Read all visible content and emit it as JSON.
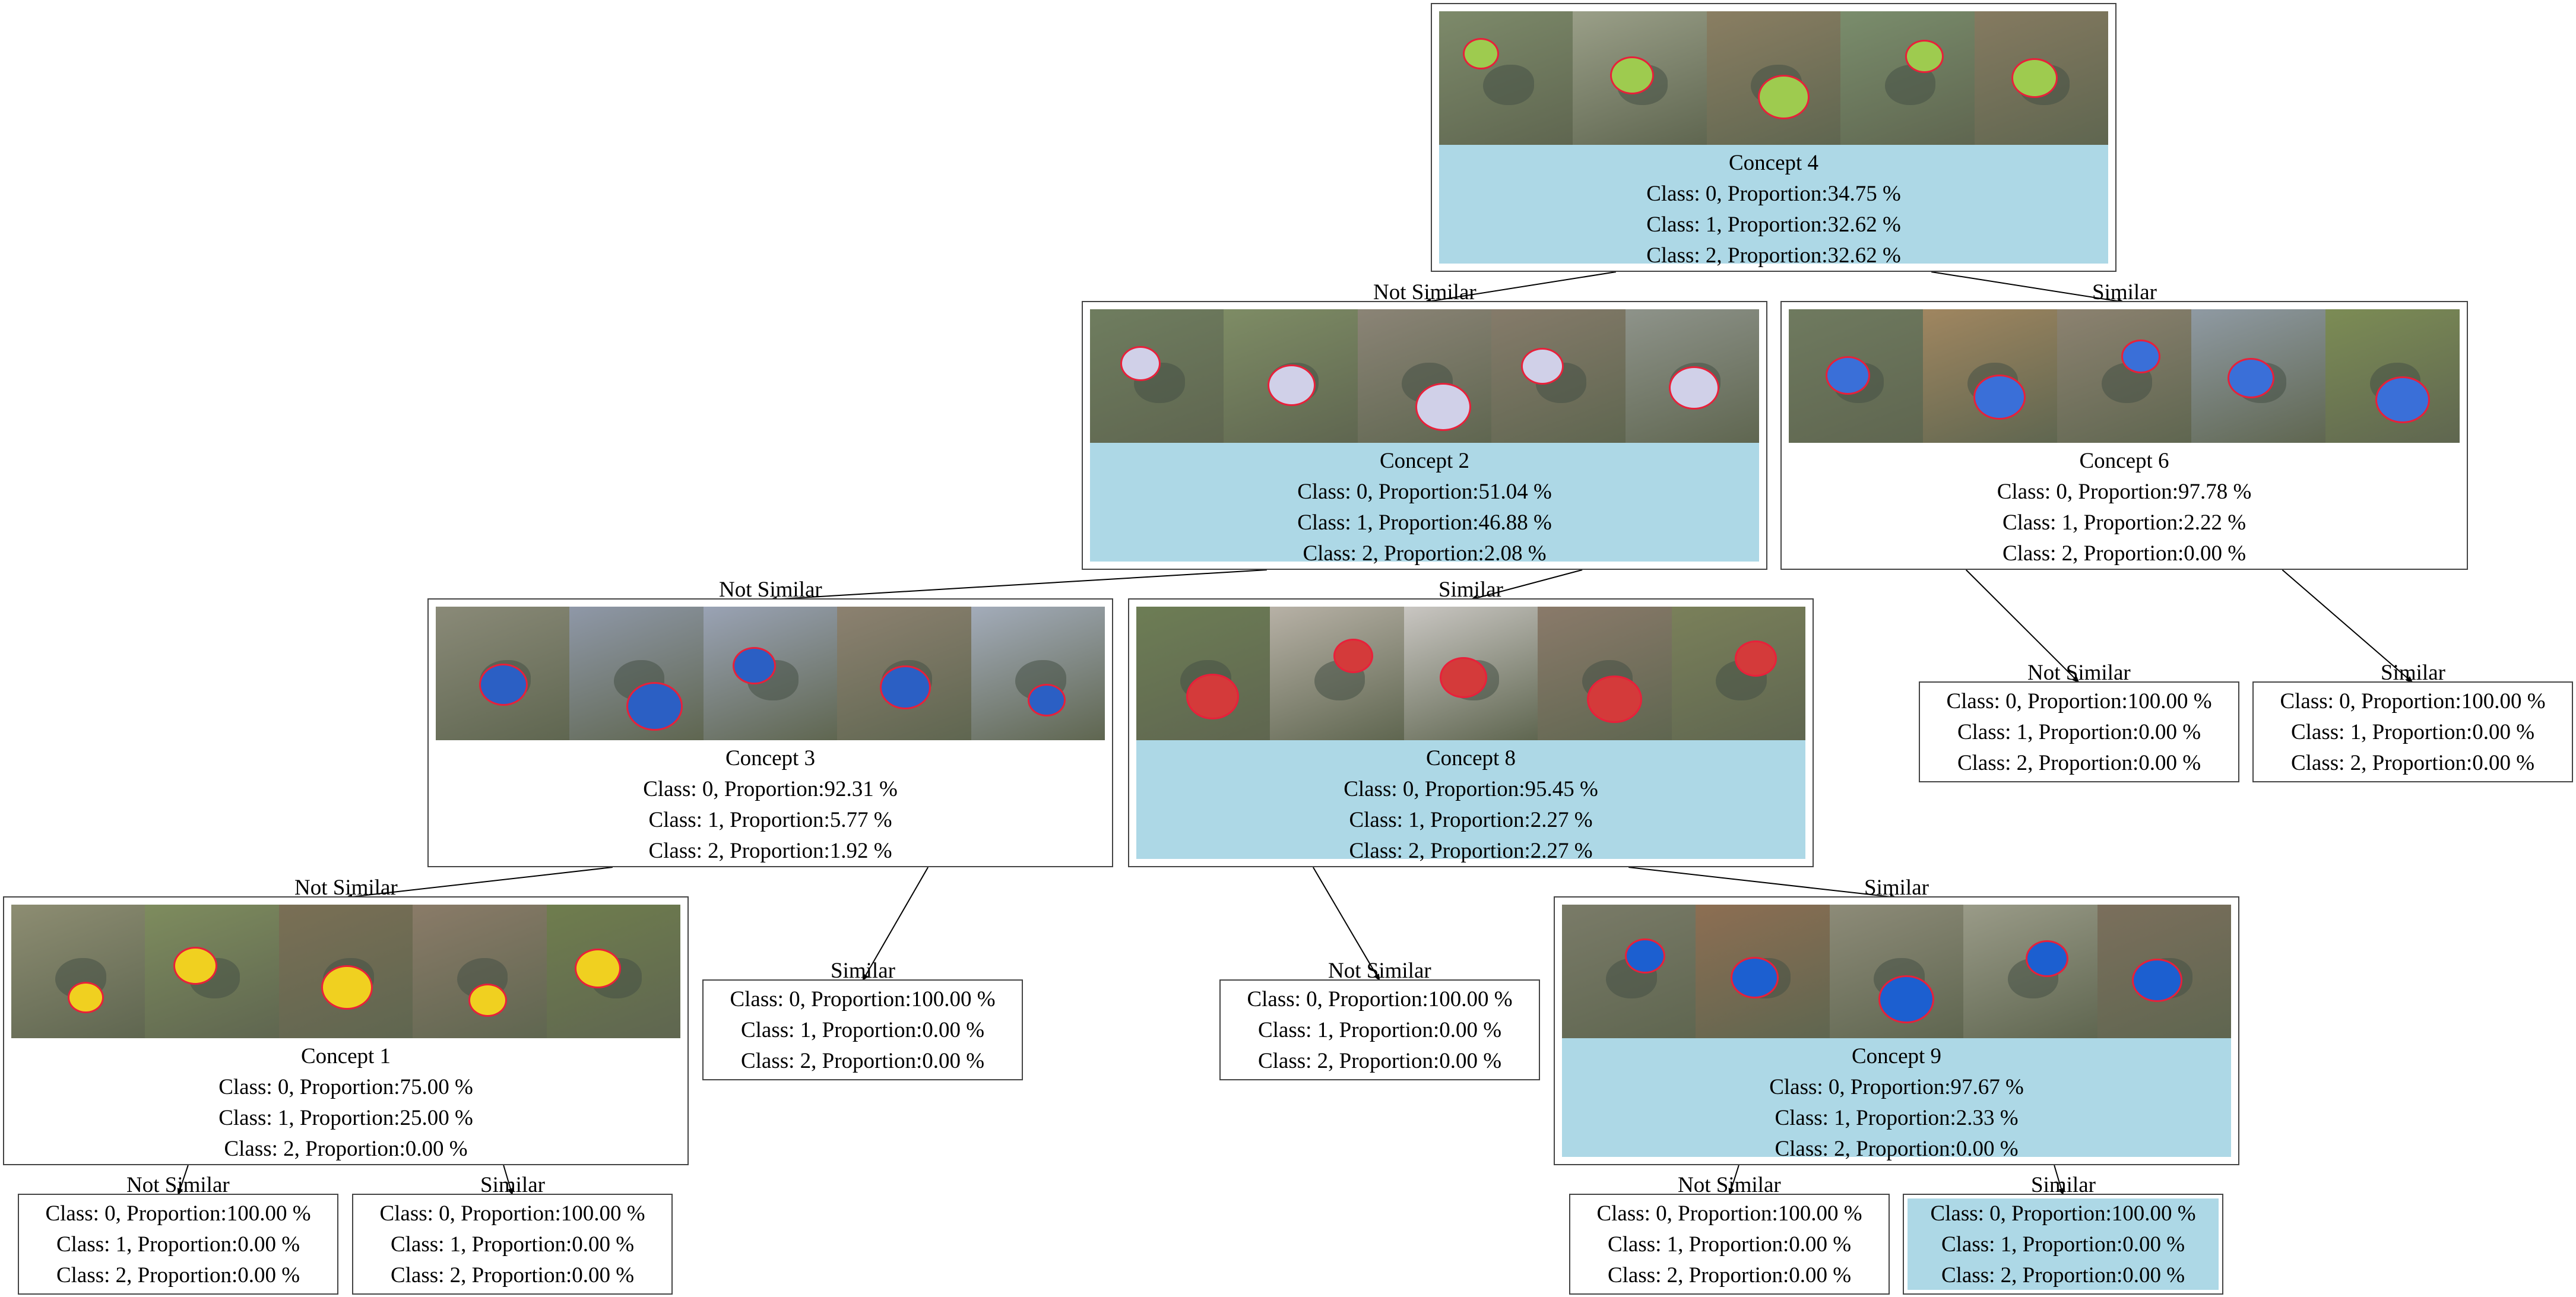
{
  "tree": {
    "edge_labels": {
      "no": "Not Similar",
      "yes": "Similar"
    },
    "nodes": [
      {
        "id": "c4",
        "title": "Concept 4",
        "highlight": true,
        "lines": [
          "Class: 0, Proportion:34.75 %",
          "Class: 1, Proportion:32.62 %",
          "Class: 2, Proportion:32.62 %"
        ]
      },
      {
        "id": "c2",
        "title": "Concept 2",
        "highlight": true,
        "lines": [
          "Class: 0, Proportion:51.04 %",
          "Class: 1, Proportion:46.88 %",
          "Class: 2, Proportion:2.08 %"
        ]
      },
      {
        "id": "c6",
        "title": "Concept 6",
        "highlight": false,
        "lines": [
          "Class: 0, Proportion:97.78 %",
          "Class: 1, Proportion:2.22 %",
          "Class: 2, Proportion:0.00 %"
        ]
      },
      {
        "id": "c3",
        "title": "Concept 3",
        "highlight": false,
        "lines": [
          "Class: 0, Proportion:92.31 %",
          "Class: 1, Proportion:5.77 %",
          "Class: 2, Proportion:1.92 %"
        ]
      },
      {
        "id": "c8",
        "title": "Concept 8",
        "highlight": true,
        "lines": [
          "Class: 0, Proportion:95.45 %",
          "Class: 1, Proportion:2.27 %",
          "Class: 2, Proportion:2.27 %"
        ]
      },
      {
        "id": "c1",
        "title": "Concept 1",
        "highlight": false,
        "lines": [
          "Class: 0, Proportion:75.00 %",
          "Class: 1, Proportion:25.00 %",
          "Class: 2, Proportion:0.00 %"
        ]
      },
      {
        "id": "c9",
        "title": "Concept 9",
        "highlight": true,
        "lines": [
          "Class: 0, Proportion:97.67 %",
          "Class: 1, Proportion:2.33 %",
          "Class: 2, Proportion:0.00 %"
        ]
      }
    ],
    "leaves": [
      {
        "id": "l6n",
        "highlight": false,
        "lines": [
          "Class: 0, Proportion:100.00 %",
          "Class: 1, Proportion:0.00 %",
          "Class: 2, Proportion:0.00 %"
        ]
      },
      {
        "id": "l6y",
        "highlight": false,
        "lines": [
          "Class: 0, Proportion:100.00 %",
          "Class: 1, Proportion:0.00 %",
          "Class: 2, Proportion:0.00 %"
        ]
      },
      {
        "id": "l3y",
        "highlight": false,
        "lines": [
          "Class: 0, Proportion:100.00 %",
          "Class: 1, Proportion:0.00 %",
          "Class: 2, Proportion:0.00 %"
        ]
      },
      {
        "id": "l8n",
        "highlight": false,
        "lines": [
          "Class: 0, Proportion:100.00 %",
          "Class: 1, Proportion:0.00 %",
          "Class: 2, Proportion:0.00 %"
        ]
      },
      {
        "id": "l1n",
        "highlight": false,
        "lines": [
          "Class: 0, Proportion:100.00 %",
          "Class: 1, Proportion:0.00 %",
          "Class: 2, Proportion:0.00 %"
        ]
      },
      {
        "id": "l1y",
        "highlight": false,
        "lines": [
          "Class: 0, Proportion:100.00 %",
          "Class: 1, Proportion:0.00 %",
          "Class: 2, Proportion:0.00 %"
        ]
      },
      {
        "id": "l9n",
        "highlight": false,
        "lines": [
          "Class: 0, Proportion:100.00 %",
          "Class: 1, Proportion:0.00 %",
          "Class: 2, Proportion:0.00 %"
        ]
      },
      {
        "id": "l9y",
        "highlight": true,
        "lines": [
          "Class: 0, Proportion:100.00 %",
          "Class: 1, Proportion:0.00 %",
          "Class: 2, Proportion:0.00 %"
        ]
      }
    ],
    "edges": [
      {
        "from": "c4",
        "to": "c2",
        "kind": "no"
      },
      {
        "from": "c4",
        "to": "c6",
        "kind": "yes"
      },
      {
        "from": "c2",
        "to": "c3",
        "kind": "no"
      },
      {
        "from": "c2",
        "to": "c8",
        "kind": "yes"
      },
      {
        "from": "c6",
        "to": "l6n",
        "kind": "no"
      },
      {
        "from": "c6",
        "to": "l6y",
        "kind": "yes"
      },
      {
        "from": "c3",
        "to": "c1",
        "kind": "no"
      },
      {
        "from": "c3",
        "to": "l3y",
        "kind": "yes"
      },
      {
        "from": "c8",
        "to": "l8n",
        "kind": "no"
      },
      {
        "from": "c8",
        "to": "c9",
        "kind": "yes"
      },
      {
        "from": "c1",
        "to": "l1n",
        "kind": "no"
      },
      {
        "from": "c1",
        "to": "l1y",
        "kind": "yes"
      },
      {
        "from": "c9",
        "to": "l9n",
        "kind": "no"
      },
      {
        "from": "c9",
        "to": "l9y",
        "kind": "yes"
      }
    ]
  }
}
